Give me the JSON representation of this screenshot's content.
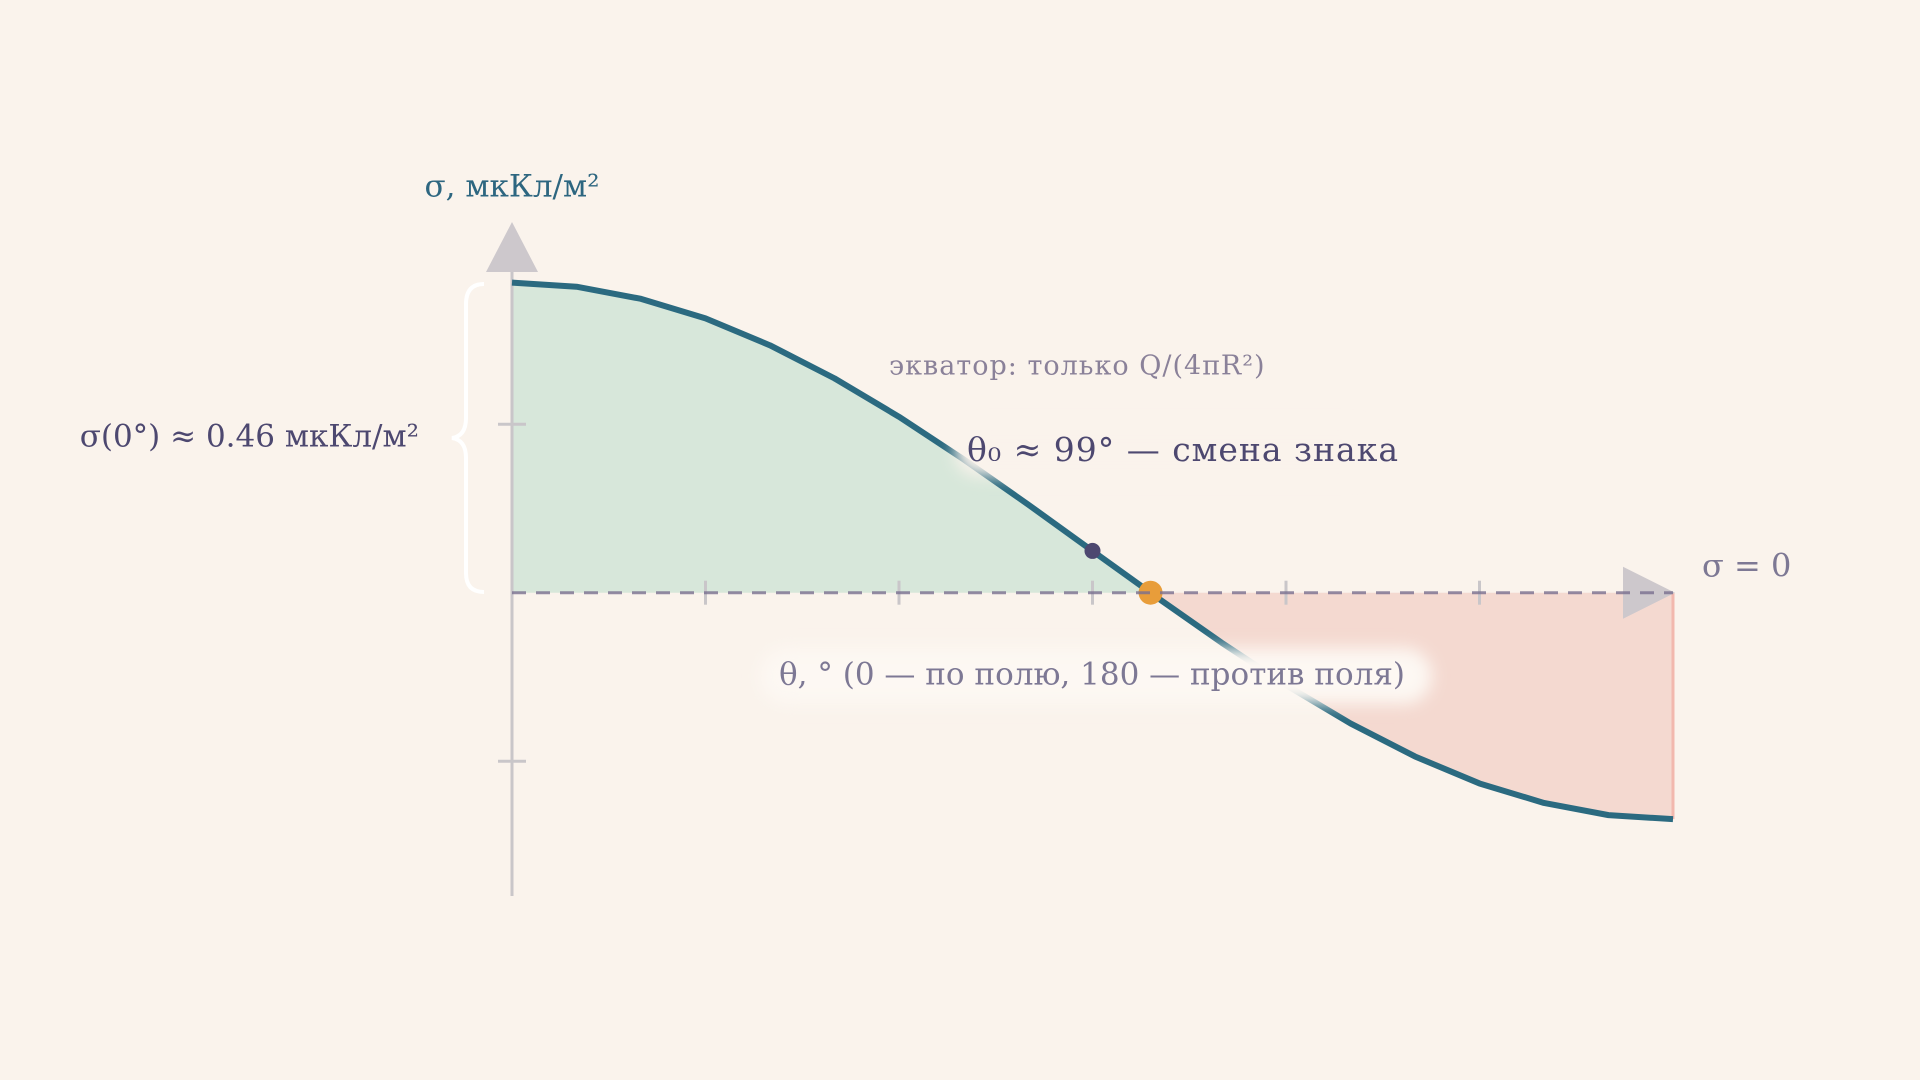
{
  "chart_data": {
    "type": "line",
    "y_label": "σ, мкКл/м²",
    "x_label": "θ, ° (0 — по полю, 180 — против поля)",
    "annotations": {
      "y_value": "σ(0°) ≈ 0.46 мкКл/м²",
      "equator": "экватор: только Q/(4πR²)",
      "sign_change": "θ₀ ≈ 99° — смена знака",
      "zero_line": "σ = 0"
    },
    "x": [
      0,
      10,
      20,
      30,
      40,
      50,
      60,
      70,
      80,
      90,
      99,
      100,
      110,
      120,
      130,
      140,
      150,
      160,
      170,
      180
    ],
    "values": [
      0.46,
      0.454,
      0.436,
      0.407,
      0.367,
      0.318,
      0.261,
      0.198,
      0.131,
      0.062,
      0,
      -0.007,
      -0.074,
      -0.137,
      -0.194,
      -0.243,
      -0.283,
      -0.312,
      -0.33,
      -0.336
    ],
    "color": "#2b6a80",
    "positive_fill": "#d7e7da",
    "negative_fill": "#f4d9d0",
    "highlight_points": [
      {
        "index": 9,
        "color": "#4d4870"
      },
      {
        "index": 10,
        "color": "#e89d3a"
      }
    ],
    "xlim": [
      0,
      180
    ],
    "ylim": [
      -0.45,
      0.55
    ],
    "xticks": [
      0,
      30,
      60,
      90,
      120,
      150,
      180
    ],
    "yticks": [
      -0.25,
      0,
      0.25
    ]
  }
}
